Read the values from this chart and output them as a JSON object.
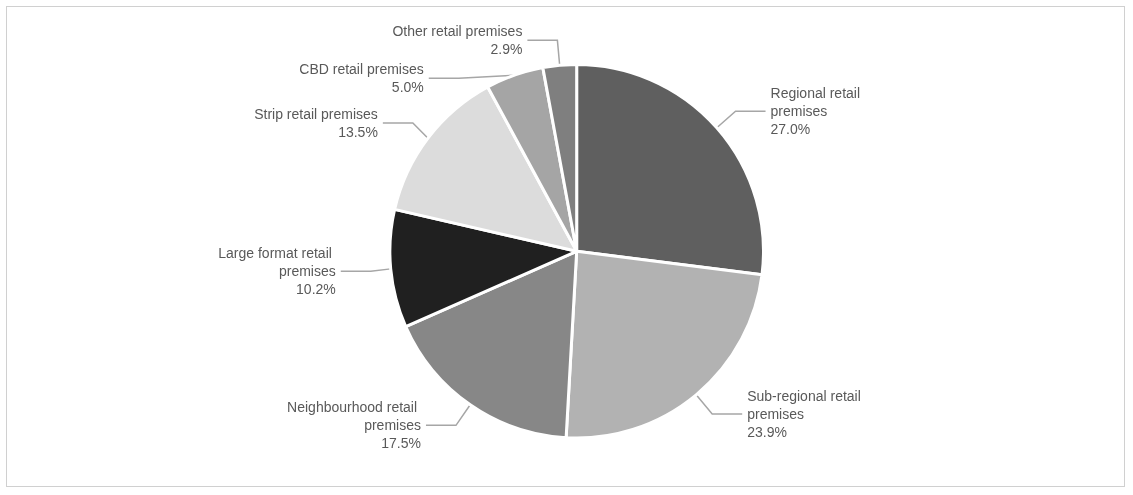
{
  "chart_data": {
    "type": "pie",
    "categories": [
      "Regional retail premises",
      "Sub-regional retail premises",
      "Neighbourhood retail premises",
      "Large format retail premises",
      "Strip retail premises",
      "CBD retail premises",
      "Other retail premises"
    ],
    "values": [
      27.0,
      23.9,
      17.5,
      10.2,
      13.5,
      5.0,
      2.9
    ],
    "value_labels": [
      "27.0%",
      "23.9%",
      "17.5%",
      "10.2%",
      "13.5%",
      "5.0%",
      "2.9%"
    ],
    "colors": [
      "#5f5f5f",
      "#b2b2b2",
      "#878787",
      "#202020",
      "#dcdcdc",
      "#a5a5a5",
      "#7f7f7f"
    ],
    "legend": false
  }
}
